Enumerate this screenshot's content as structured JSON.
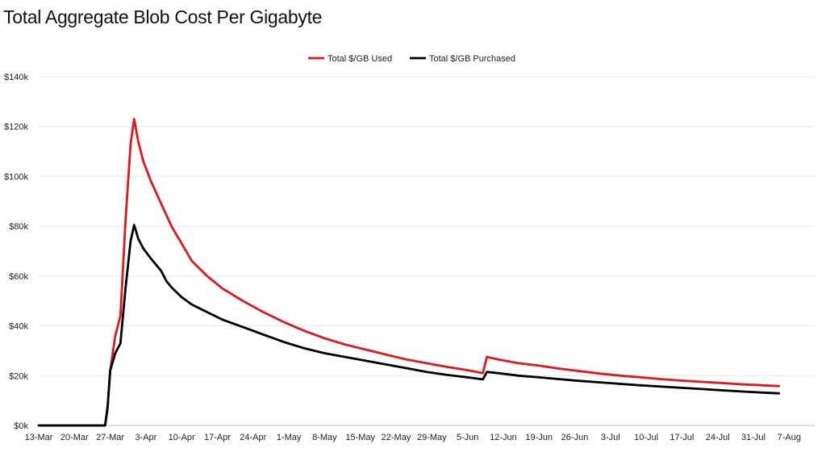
{
  "title": "Total Aggregate Blob Cost Per Gigabyte",
  "chart_data": {
    "type": "line",
    "title": "Total Aggregate Blob Cost Per Gigabyte",
    "xlabel": "",
    "ylabel": "",
    "ylim": [
      0,
      140000
    ],
    "y_ticks": [
      {
        "value": 0,
        "label": "$0k"
      },
      {
        "value": 20000,
        "label": "$20k"
      },
      {
        "value": 40000,
        "label": "$40k"
      },
      {
        "value": 60000,
        "label": "$60k"
      },
      {
        "value": 80000,
        "label": "$80k"
      },
      {
        "value": 100000,
        "label": "$100k"
      },
      {
        "value": 120000,
        "label": "$120k"
      },
      {
        "value": 140000,
        "label": "$140k"
      }
    ],
    "x_tick_labels": [
      "13-Mar",
      "20-Mar",
      "27-Mar",
      "3-Apr",
      "10-Apr",
      "17-Apr",
      "24-Apr",
      "1-May",
      "8-May",
      "15-May",
      "22-May",
      "29-May",
      "5-Jun",
      "12-Jun",
      "19-Jun",
      "26-Jun",
      "3-Jul",
      "10-Jul",
      "17-Jul",
      "24-Jul",
      "31-Jul",
      "7-Aug"
    ],
    "x_range_days": [
      0,
      152
    ],
    "grid": true,
    "legend_position": "top-center",
    "series": [
      {
        "name": "Total $/GB Used",
        "color": "#e0161e",
        "points": [
          [
            0,
            0
          ],
          [
            13,
            0
          ],
          [
            13.5,
            8000
          ],
          [
            14,
            22000
          ],
          [
            15,
            36000
          ],
          [
            16,
            44000
          ],
          [
            17,
            82000
          ],
          [
            18,
            113000
          ],
          [
            18.7,
            123000
          ],
          [
            19.5,
            114000
          ],
          [
            20.5,
            106000
          ],
          [
            22,
            98000
          ],
          [
            24,
            89000
          ],
          [
            26,
            80000
          ],
          [
            28,
            73000
          ],
          [
            30,
            66000
          ],
          [
            33,
            60000
          ],
          [
            36,
            55000
          ],
          [
            40,
            50000
          ],
          [
            44,
            45500
          ],
          [
            48,
            41500
          ],
          [
            52,
            38000
          ],
          [
            56,
            35000
          ],
          [
            60,
            32500
          ],
          [
            64,
            30500
          ],
          [
            68,
            28500
          ],
          [
            72,
            26500
          ],
          [
            76,
            25000
          ],
          [
            80,
            23500
          ],
          [
            84,
            22200
          ],
          [
            87,
            21000
          ],
          [
            87.8,
            27500
          ],
          [
            90,
            26500
          ],
          [
            94,
            25000
          ],
          [
            98,
            24000
          ],
          [
            102,
            22800
          ],
          [
            106,
            21800
          ],
          [
            110,
            20800
          ],
          [
            114,
            20000
          ],
          [
            118,
            19300
          ],
          [
            122,
            18600
          ],
          [
            126,
            18000
          ],
          [
            130,
            17500
          ],
          [
            134,
            17000
          ],
          [
            138,
            16500
          ],
          [
            142,
            16100
          ],
          [
            145,
            15800
          ]
        ]
      },
      {
        "name": "Total $/GB Purchased",
        "color": "#000000",
        "points": [
          [
            0,
            0
          ],
          [
            13,
            0
          ],
          [
            13.5,
            7000
          ],
          [
            14,
            22000
          ],
          [
            15,
            29000
          ],
          [
            16,
            33000
          ],
          [
            17,
            55000
          ],
          [
            18,
            74000
          ],
          [
            18.7,
            80500
          ],
          [
            19.5,
            75000
          ],
          [
            20.5,
            71000
          ],
          [
            22,
            67000
          ],
          [
            24,
            62000
          ],
          [
            25,
            58000
          ],
          [
            26,
            55500
          ],
          [
            28,
            51500
          ],
          [
            30,
            48500
          ],
          [
            33,
            45500
          ],
          [
            36,
            42500
          ],
          [
            40,
            39500
          ],
          [
            44,
            36500
          ],
          [
            48,
            33500
          ],
          [
            52,
            31000
          ],
          [
            56,
            29000
          ],
          [
            60,
            27500
          ],
          [
            64,
            26000
          ],
          [
            68,
            24500
          ],
          [
            72,
            23000
          ],
          [
            76,
            21500
          ],
          [
            80,
            20300
          ],
          [
            84,
            19300
          ],
          [
            87,
            18500
          ],
          [
            87.8,
            21500
          ],
          [
            90,
            21000
          ],
          [
            94,
            20000
          ],
          [
            98,
            19300
          ],
          [
            102,
            18600
          ],
          [
            106,
            17900
          ],
          [
            110,
            17300
          ],
          [
            114,
            16700
          ],
          [
            118,
            16100
          ],
          [
            122,
            15600
          ],
          [
            126,
            15100
          ],
          [
            130,
            14600
          ],
          [
            134,
            14100
          ],
          [
            138,
            13600
          ],
          [
            142,
            13200
          ],
          [
            145,
            12900
          ]
        ]
      }
    ]
  }
}
